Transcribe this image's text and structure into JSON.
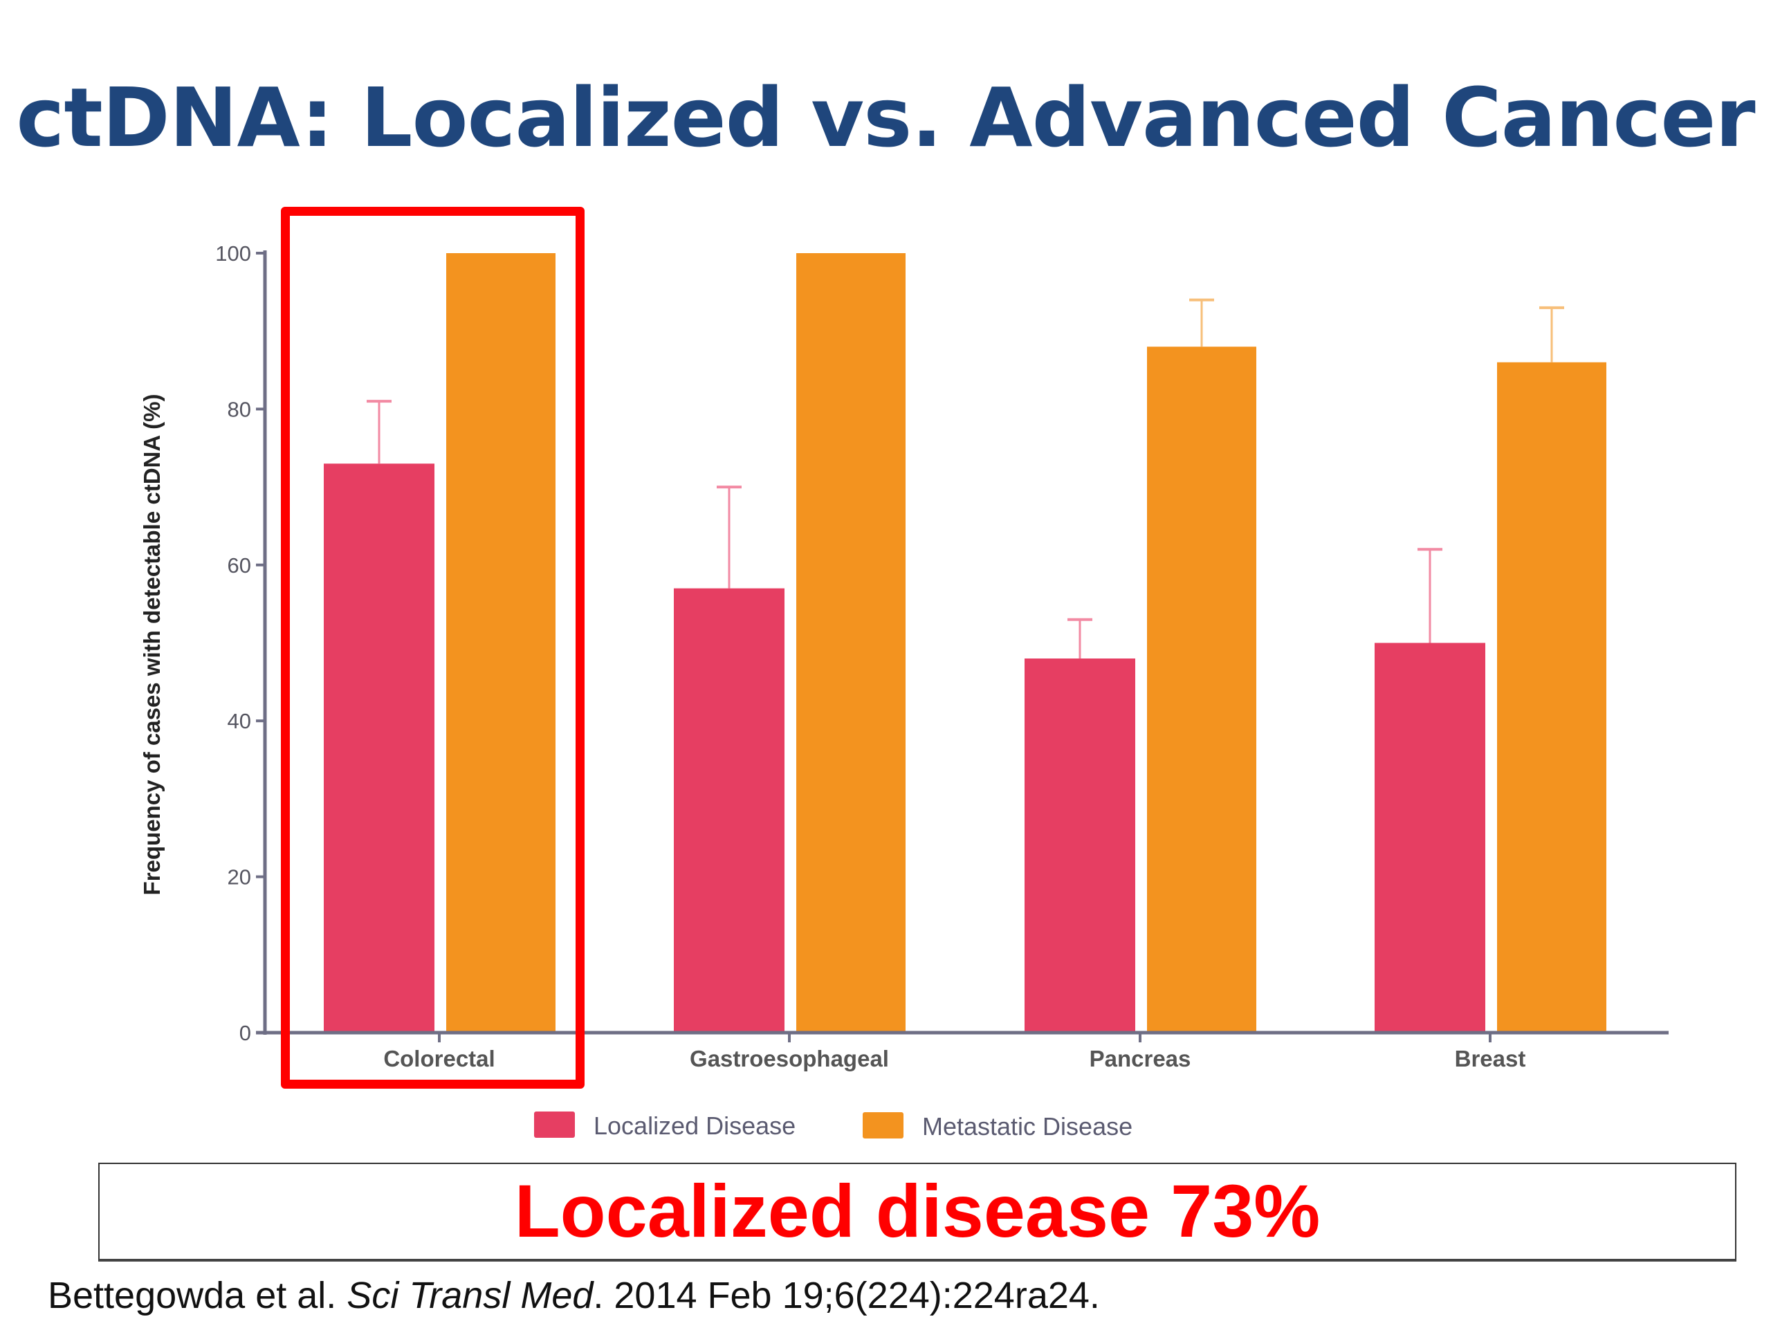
{
  "slide": {
    "title": "ctDNA: Localized vs. Advanced Cancer",
    "callout": "Localized disease 73%",
    "citation": {
      "authors": "Bettegowda et al. ",
      "journal": "Sci Transl Med",
      "details": ". 2014 Feb 19;6(224):224ra24."
    },
    "highlight": "Colorectal"
  },
  "colors": {
    "title": "#1f467c",
    "localized": "#e63e62",
    "metastatic": "#f3931f",
    "localized_error": "#f28aa3",
    "metastatic_error": "#f7bf7a",
    "highlight": "#ff0000",
    "axis": "#6e6e85"
  },
  "chart_data": {
    "type": "bar",
    "title": "",
    "xlabel": "",
    "ylabel": "Frequency of cases with detectable ctDNA (%)",
    "ylim": [
      0,
      100
    ],
    "yticks": [
      0,
      20,
      40,
      60,
      80,
      100
    ],
    "grid": false,
    "legend_position": "bottom",
    "categories": [
      "Colorectal",
      "Gastroesophageal",
      "Pancreas",
      "Breast"
    ],
    "series": [
      {
        "name": "Localized Disease",
        "values": [
          73,
          57,
          48,
          50
        ],
        "error_upper": [
          81,
          70,
          53,
          62
        ]
      },
      {
        "name": "Metastatic Disease",
        "values": [
          100,
          100,
          88,
          86
        ],
        "error_upper": [
          null,
          null,
          94,
          93
        ]
      }
    ]
  }
}
